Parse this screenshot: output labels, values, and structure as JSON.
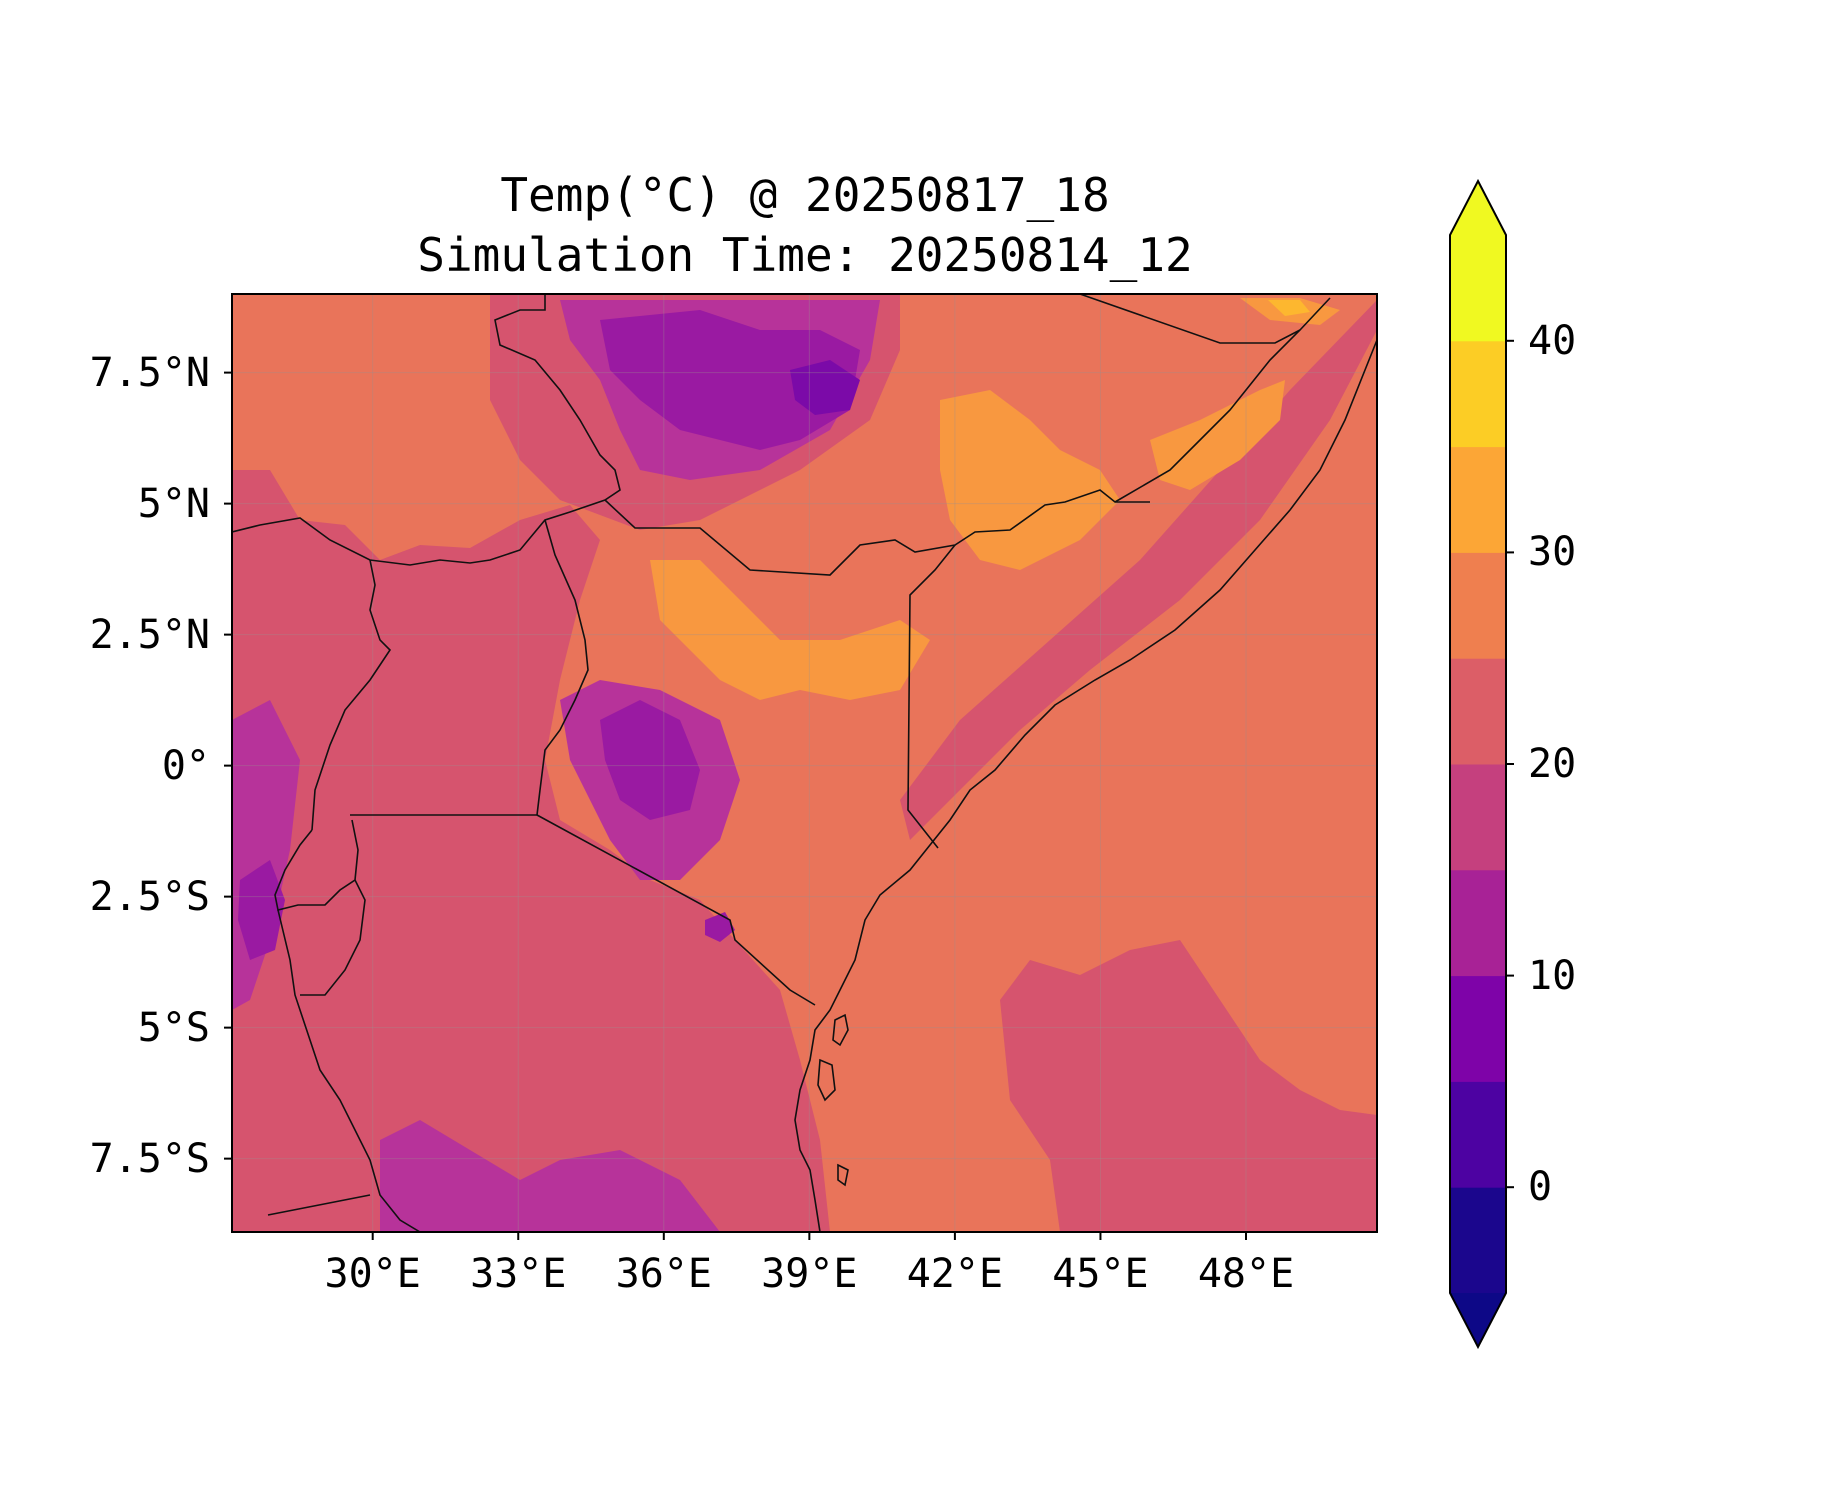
{
  "title": {
    "line1": "Temp(°C) @ 20250817_18",
    "line2": "Simulation Time: 20250814_12"
  },
  "map": {
    "projection": "PlateCarree",
    "lon_range": [
      27.1,
      50.7
    ],
    "lat_range": [
      -8.9,
      9.0
    ],
    "gridlines": true,
    "x_ticks": [
      {
        "value": 30,
        "label": "30°E"
      },
      {
        "value": 33,
        "label": "33°E"
      },
      {
        "value": 36,
        "label": "36°E"
      },
      {
        "value": 39,
        "label": "39°E"
      },
      {
        "value": 42,
        "label": "42°E"
      },
      {
        "value": 45,
        "label": "45°E"
      },
      {
        "value": 48,
        "label": "48°E"
      }
    ],
    "y_ticks": [
      {
        "value": 7.5,
        "label": "7.5°N"
      },
      {
        "value": 5,
        "label": "5°N"
      },
      {
        "value": 2.5,
        "label": "2.5°N"
      },
      {
        "value": 0,
        "label": "0°"
      },
      {
        "value": -2.5,
        "label": "2.5°S"
      },
      {
        "value": -5,
        "label": "5°S"
      },
      {
        "value": -7.5,
        "label": "7.5°S"
      }
    ],
    "colors": {
      "lvl_15_20": "#b7339a",
      "lvl_20_25": "#d6546e",
      "lvl_25_30": "#e9745a",
      "lvl_30_35": "#f89840",
      "lvl_35_40": "#fdb72f",
      "lvl_10_15": "#9a1aa2",
      "lvl_5_10": "#7b0aa8",
      "border": "#111111"
    }
  },
  "colorbar": {
    "cmap": "plasma",
    "extend": "both",
    "vmin": -5,
    "vmax": 45,
    "step": 5,
    "ticks": [
      {
        "value": 0,
        "label": "0"
      },
      {
        "value": 10,
        "label": "10"
      },
      {
        "value": 20,
        "label": "20"
      },
      {
        "value": 30,
        "label": "30"
      },
      {
        "value": 40,
        "label": "40"
      }
    ],
    "level_colors": [
      "#1b068d",
      "#4d02a2",
      "#7e03a8",
      "#a82296",
      "#c5407e",
      "#dc5e67",
      "#ef7f4f",
      "#fca636",
      "#fccd25",
      "#f0f921"
    ],
    "under_color": "#0d0887",
    "over_color": "#f0f921"
  }
}
